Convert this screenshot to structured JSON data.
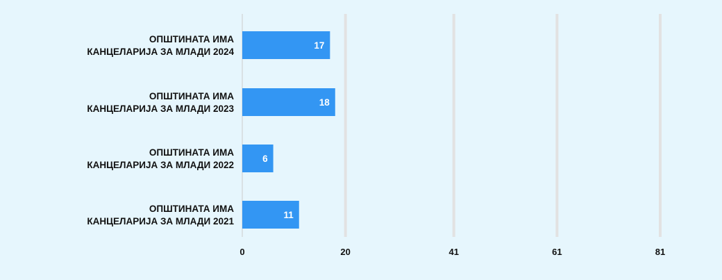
{
  "chart_data": {
    "type": "bar",
    "orientation": "horizontal",
    "categories": [
      [
        "ОПШТИНАТА ИМА",
        "КАНЦЕЛАРИЈА ЗА МЛАДИ 2024"
      ],
      [
        "ОПШТИНАТА ИМА",
        "КАНЦЕЛАРИЈА ЗА МЛАДИ 2023"
      ],
      [
        "ОПШТИНАТА ИМА",
        "КАНЦЕЛАРИЈА ЗА МЛАДИ 2022"
      ],
      [
        "ОПШТИНАТА ИМА",
        "КАНЦЕЛАРИЈА ЗА МЛАДИ 2021"
      ]
    ],
    "values": [
      17,
      18,
      6,
      11
    ],
    "data_labels": [
      "17",
      "18",
      "6",
      "11"
    ],
    "x_ticks": [
      0,
      20,
      41,
      61,
      81
    ],
    "x_tick_labels": [
      "0",
      "20",
      "41",
      "61",
      "81"
    ],
    "xlim": [
      0,
      81
    ],
    "grid": "vertical",
    "legend": "none",
    "title": "",
    "xlabel": "",
    "ylabel": ""
  },
  "colors": {
    "background": "#e6f6fd",
    "bar": "#3396f3",
    "grid": "#e2e2e2",
    "axis": "#cccccc",
    "text": "#111111",
    "value_text": "#ffffff"
  }
}
